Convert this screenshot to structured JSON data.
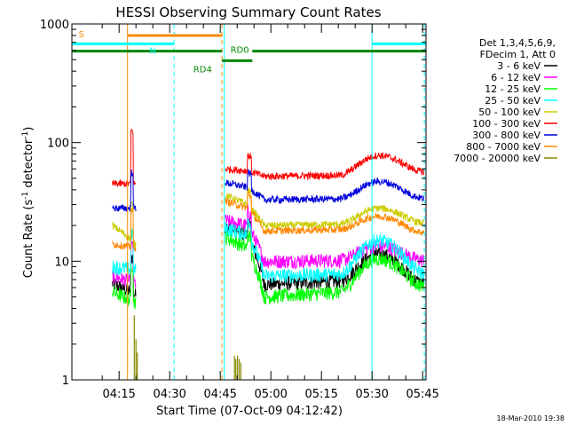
{
  "chart_data": {
    "type": "line",
    "title": "HESSI Observing Summary Count Rates",
    "xlabel": "Start Time (07-Oct-09 04:12:42)",
    "ylabel_main": "Count Rate (s",
    "ylabel_sup1": "-1",
    "ylabel_mid": " detector",
    "ylabel_sup2": "-1",
    "ylabel_end": ")",
    "yscale": "log",
    "ylim": [
      1,
      1000
    ],
    "xlim_minutes": [
      1,
      106
    ],
    "x_ticks": [
      {
        "m": 15,
        "label": "04:15"
      },
      {
        "m": 30,
        "label": "04:30"
      },
      {
        "m": 45,
        "label": "04:45"
      },
      {
        "m": 60,
        "label": "05:00"
      },
      {
        "m": 75,
        "label": "05:15"
      },
      {
        "m": 90,
        "label": "05:30"
      },
      {
        "m": 105,
        "label": "05:45"
      }
    ],
    "y_ticks": [
      {
        "v": 1,
        "label": "1"
      },
      {
        "v": 10,
        "label": "10"
      },
      {
        "v": 100,
        "label": "100"
      },
      {
        "v": 1000,
        "label": "1000"
      }
    ],
    "legend_header": [
      "Det 1,3,4,5,6,9,",
      "FDecim 1, Att 0"
    ],
    "series": [
      {
        "name": "3 - 6 keV",
        "color": "#000000",
        "a": [
          6.5,
          5.2
        ],
        "b": [
          20,
          16.5,
          6.4,
          6.8,
          11.5,
          6.5
        ]
      },
      {
        "name": "6 - 12 keV",
        "color": "#ff00ff",
        "a": [
          7.5,
          6.5
        ],
        "b": [
          22,
          20,
          10,
          10.2,
          13.5,
          10.2
        ]
      },
      {
        "name": "12 - 25 keV",
        "color": "#00ff00",
        "a": [
          5.5,
          4.5
        ],
        "b": [
          16,
          13,
          5,
          5.5,
          10.5,
          6.2
        ]
      },
      {
        "name": "25 - 50 keV",
        "color": "#00ffff",
        "a": [
          9,
          8.5
        ],
        "b": [
          19,
          17,
          7.5,
          7.8,
          15,
          8
        ]
      },
      {
        "name": "50 - 100 keV",
        "color": "#cccc00",
        "a": [
          20,
          14
        ],
        "b": [
          36,
          30,
          20,
          20.5,
          28,
          21
        ]
      },
      {
        "name": "100 - 300 keV",
        "color": "#ff0000",
        "a": [
          45,
          45
        ],
        "b": [
          60,
          58,
          52,
          53,
          78,
          57
        ]
      },
      {
        "name": "300 - 800 keV",
        "color": "#0000dd",
        "a": [
          28,
          28
        ],
        "b": [
          46,
          42,
          33,
          33.5,
          47,
          34
        ]
      },
      {
        "name": "800 - 7000 keV",
        "color": "#ff8800",
        "a": [
          14,
          13
        ],
        "b": [
          32,
          28,
          18,
          18.5,
          24,
          17.5
        ]
      },
      {
        "name": "7000 - 20000 keV",
        "color": "#888800",
        "a": [
          1,
          1
        ],
        "b": [
          1,
          1,
          1,
          1,
          1,
          1
        ]
      }
    ],
    "flags": [
      {
        "name": "S",
        "color": "#ff8800",
        "y": 800,
        "start": 17.5,
        "end": 45.5
      },
      {
        "name": "N",
        "color": "#00ffff",
        "y": 680,
        "start": 1,
        "end": 31.3
      },
      {
        "name": "N",
        "color": "#00ffff",
        "y": 680,
        "start": 90,
        "end": 106
      },
      {
        "name": "RD0",
        "color": "#008800",
        "y": 590,
        "start": 1,
        "end": 45.5
      },
      {
        "name": "RD0",
        "color": "#008800",
        "y": 590,
        "start": 54.5,
        "end": 106
      },
      {
        "name": "RD4",
        "color": "#008800",
        "y": 490,
        "start": 45.5,
        "end": 54.5
      }
    ],
    "flag_labels": [
      {
        "text": "S",
        "color": "#ff8800",
        "m": 3,
        "y": 830
      },
      {
        "text": "N",
        "color": "#00ffff",
        "m": 24,
        "y": 600
      },
      {
        "text": "RD0",
        "color": "#008800",
        "m": 48,
        "y": 610
      },
      {
        "text": "RD4",
        "color": "#008800",
        "m": 37,
        "y": 420
      }
    ],
    "vlines": [
      {
        "m": 17.5,
        "color": "#ff8800",
        "style": "solid"
      },
      {
        "m": 31.3,
        "color": "#00ffff",
        "style": "dashed"
      },
      {
        "m": 45.5,
        "color": "#ff8800",
        "style": "dashed"
      },
      {
        "m": 90,
        "color": "#00ffff",
        "style": "solid"
      },
      {
        "m": 105.5,
        "color": "#00ffff",
        "style": "dashed"
      },
      {
        "m": 46.2,
        "color": "#00ffff",
        "style": "solid"
      }
    ],
    "footer": "18-Mar-2010 19:38"
  }
}
